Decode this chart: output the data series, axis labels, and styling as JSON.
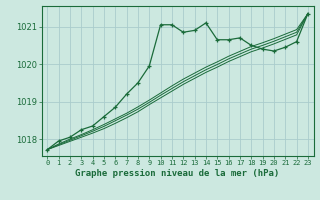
{
  "title": "Graphe pression niveau de la mer (hPa)",
  "bg_color": "#cce8e0",
  "grid_color": "#aacccc",
  "line_color": "#1a6b3a",
  "x_ticks": [
    0,
    1,
    2,
    3,
    4,
    5,
    6,
    7,
    8,
    9,
    10,
    11,
    12,
    13,
    14,
    15,
    16,
    17,
    18,
    19,
    20,
    21,
    22,
    23
  ],
  "ylim": [
    1017.55,
    1021.55
  ],
  "yticks": [
    1018,
    1019,
    1020,
    1021
  ],
  "series_main": {
    "x": [
      0,
      1,
      2,
      3,
      4,
      5,
      6,
      7,
      8,
      9,
      10,
      11,
      12,
      13,
      14,
      15,
      16,
      17,
      18,
      19,
      20,
      21,
      22,
      23
    ],
    "y": [
      1017.72,
      1017.95,
      1018.05,
      1018.25,
      1018.35,
      1018.6,
      1018.85,
      1019.2,
      1019.5,
      1019.95,
      1021.05,
      1021.05,
      1020.85,
      1020.9,
      1021.1,
      1020.65,
      1020.65,
      1020.7,
      1020.5,
      1020.4,
      1020.35,
      1020.45,
      1020.6,
      1021.35
    ]
  },
  "series2": {
    "x": [
      0,
      1,
      2,
      3,
      4,
      5,
      6,
      7,
      8,
      9,
      10,
      11,
      12,
      13,
      14,
      15,
      16,
      17,
      18,
      19,
      20,
      21,
      22,
      23
    ],
    "y": [
      1017.72,
      1017.83,
      1017.94,
      1018.05,
      1018.16,
      1018.28,
      1018.42,
      1018.57,
      1018.73,
      1018.92,
      1019.1,
      1019.28,
      1019.46,
      1019.62,
      1019.78,
      1019.92,
      1020.07,
      1020.2,
      1020.33,
      1020.43,
      1020.54,
      1020.66,
      1020.78,
      1021.35
    ]
  },
  "series3": {
    "x": [
      0,
      1,
      2,
      3,
      4,
      5,
      6,
      7,
      8,
      9,
      10,
      11,
      12,
      13,
      14,
      15,
      16,
      17,
      18,
      19,
      20,
      21,
      22,
      23
    ],
    "y": [
      1017.72,
      1017.85,
      1017.97,
      1018.09,
      1018.21,
      1018.34,
      1018.49,
      1018.64,
      1018.8,
      1018.98,
      1019.17,
      1019.35,
      1019.53,
      1019.69,
      1019.85,
      1019.99,
      1020.14,
      1020.27,
      1020.4,
      1020.5,
      1020.61,
      1020.73,
      1020.85,
      1021.35
    ]
  },
  "series4": {
    "x": [
      0,
      1,
      2,
      3,
      4,
      5,
      6,
      7,
      8,
      9,
      10,
      11,
      12,
      13,
      14,
      15,
      16,
      17,
      18,
      19,
      20,
      21,
      22,
      23
    ],
    "y": [
      1017.72,
      1017.87,
      1018.0,
      1018.12,
      1018.25,
      1018.39,
      1018.54,
      1018.69,
      1018.86,
      1019.04,
      1019.23,
      1019.42,
      1019.6,
      1019.76,
      1019.92,
      1020.06,
      1020.21,
      1020.34,
      1020.47,
      1020.57,
      1020.68,
      1020.8,
      1020.92,
      1021.35
    ]
  }
}
